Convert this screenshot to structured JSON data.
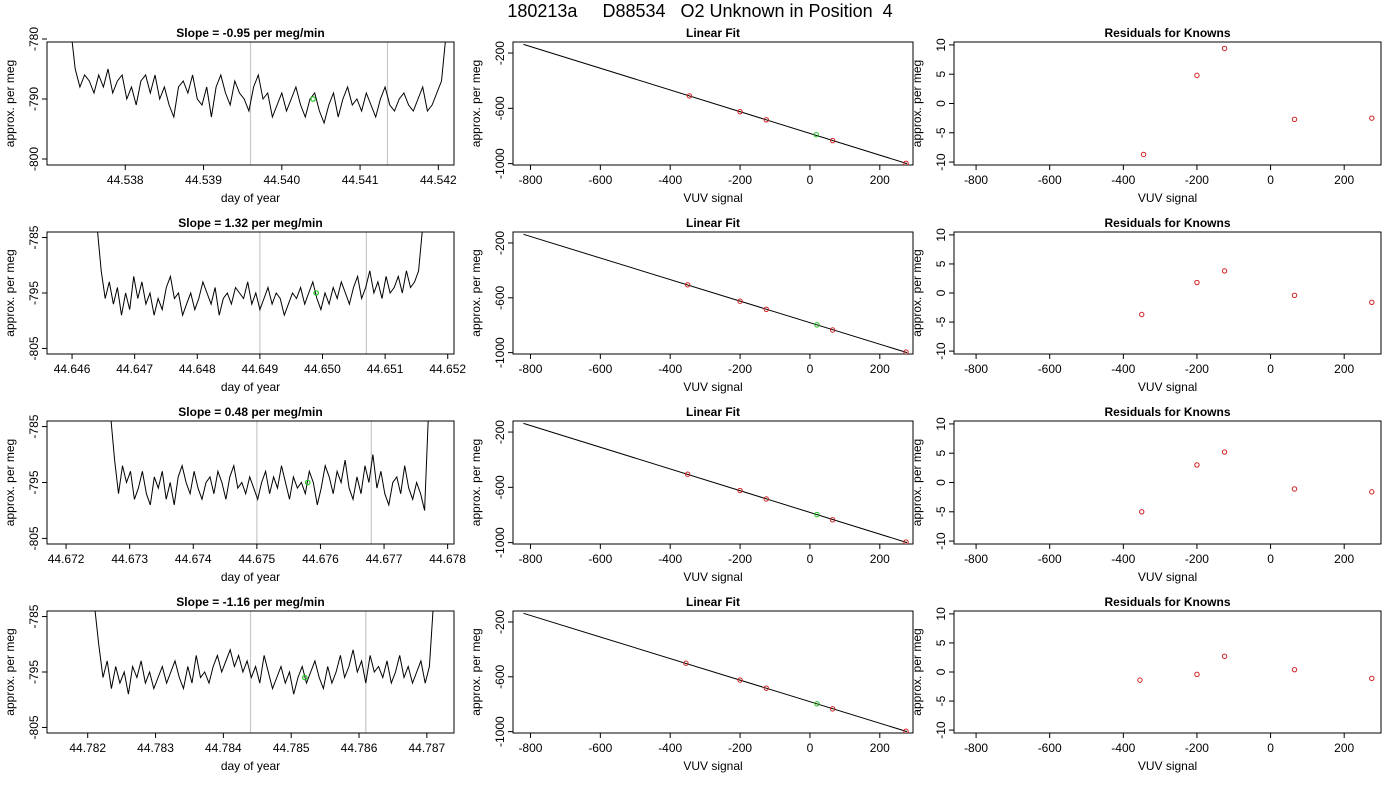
{
  "figure": {
    "title": "180213a     D88534   O2 Unknown in Position  4"
  },
  "chart_data": [
    {
      "type": "line",
      "title": "Slope =  -0.95  per meg/min",
      "xlabel": "day of year",
      "ylabel": "approx. per meg",
      "xlim": [
        44.537,
        44.5422
      ],
      "ylim": [
        -801,
        -780.5
      ],
      "xticks": [
        "44.538",
        "44.539",
        "44.540",
        "44.541",
        "44.542"
      ],
      "yticks": [
        "-780",
        "-790",
        "-800"
      ],
      "vlines": [
        44.5396,
        44.54135
      ],
      "series": [
        {
          "x_start": 44.5373,
          "x_end": 44.5421,
          "y": [
            -778,
            -785,
            -788,
            -786,
            -787,
            -789,
            -786,
            -788,
            -785,
            -789,
            -787,
            -786,
            -790,
            -788,
            -791,
            -787,
            -786,
            -789,
            -786,
            -790,
            -788,
            -791,
            -793,
            -788,
            -787,
            -789,
            -786,
            -790,
            -791,
            -788,
            -793,
            -788,
            -786,
            -789,
            -791,
            -787,
            -789,
            -790,
            -792,
            -788,
            -786,
            -790,
            -789,
            -793,
            -791,
            -789,
            -792,
            -790,
            -788,
            -791,
            -793,
            -790,
            -789,
            -792,
            -794,
            -791,
            -789,
            -793,
            -790,
            -788,
            -791,
            -790,
            -792,
            -789,
            -791,
            -793,
            -790,
            -788,
            -791,
            -792,
            -790,
            -789,
            -791,
            -792,
            -790,
            -788,
            -792,
            -791,
            -789,
            -787,
            -779
          ]
        }
      ],
      "highlight": {
        "x": 44.5404,
        "y": -790
      }
    },
    {
      "type": "scatter",
      "title": "Linear Fit",
      "xlabel": "VUV signal",
      "ylabel": "approx. per meg",
      "xlim": [
        -850,
        295
      ],
      "ylim": [
        -1010,
        -120
      ],
      "xticks": [
        "-800",
        "-600",
        "-400",
        "-200",
        "0",
        "200"
      ],
      "yticks": [
        "-200",
        "-600",
        "-1000"
      ],
      "fit_line": {
        "x1": -820,
        "y1": -137,
        "x2": 278,
        "y2": -1000
      },
      "knowns": [
        {
          "x": -345,
          "y": -510
        },
        {
          "x": -200,
          "y": -624
        },
        {
          "x": -125,
          "y": -683
        },
        {
          "x": 65,
          "y": -833
        },
        {
          "x": 275,
          "y": -998
        }
      ],
      "unknown": {
        "x": 18,
        "y": -791
      }
    },
    {
      "type": "scatter",
      "title": "Residuals for Knowns",
      "xlabel": "VUV signal",
      "ylabel": "approx. per meg",
      "xlim": [
        -860,
        300
      ],
      "ylim": [
        -10.5,
        10.5
      ],
      "xticks": [
        "-800",
        "-600",
        "-400",
        "-200",
        "0",
        "200"
      ],
      "yticks": [
        "10",
        "5",
        "0",
        "-5",
        "-10"
      ],
      "points": [
        {
          "x": -345,
          "y": -8.7
        },
        {
          "x": -200,
          "y": 4.8
        },
        {
          "x": -125,
          "y": 9.4
        },
        {
          "x": 65,
          "y": -2.7
        },
        {
          "x": 275,
          "y": -2.5
        }
      ]
    },
    {
      "type": "line",
      "title": "Slope =  1.32  per meg/min",
      "xlabel": "day of year",
      "ylabel": "approx. per meg",
      "xlim": [
        44.6456,
        44.6521
      ],
      "ylim": [
        -806,
        -784
      ],
      "xticks": [
        "44.646",
        "44.647",
        "44.648",
        "44.649",
        "44.650",
        "44.651",
        "44.652"
      ],
      "yticks": [
        "-785",
        "-795",
        "-805"
      ],
      "vlines": [
        44.649,
        44.6507
      ],
      "series": [
        {
          "x_start": 44.6464,
          "x_end": 44.6516,
          "y": [
            -783,
            -791,
            -796,
            -793,
            -797,
            -794,
            -799,
            -795,
            -798,
            -792,
            -796,
            -793,
            -797,
            -795,
            -799,
            -796,
            -798,
            -794,
            -792,
            -796,
            -795,
            -799,
            -797,
            -795,
            -798,
            -796,
            -793,
            -795,
            -797,
            -794,
            -799,
            -796,
            -795,
            -797,
            -794,
            -795,
            -796,
            -793,
            -797,
            -795,
            -798,
            -796,
            -794,
            -797,
            -795,
            -796,
            -799,
            -797,
            -795,
            -796,
            -794,
            -797,
            -795,
            -793,
            -796,
            -798,
            -795,
            -797,
            -794,
            -796,
            -793,
            -795,
            -797,
            -794,
            -792,
            -796,
            -794,
            -791,
            -795,
            -793,
            -796,
            -792,
            -795,
            -794,
            -792,
            -795,
            -791,
            -794,
            -793,
            -791,
            -783
          ]
        }
      ],
      "highlight": {
        "x": 44.6499,
        "y": -795
      }
    },
    {
      "type": "scatter",
      "title": "Linear Fit",
      "xlabel": "VUV signal",
      "ylabel": "approx. per meg",
      "xlim": [
        -850,
        295
      ],
      "ylim": [
        -1010,
        -120
      ],
      "xticks": [
        "-800",
        "-600",
        "-400",
        "-200",
        "0",
        "200"
      ],
      "yticks": [
        "-200",
        "-600",
        "-1000"
      ],
      "fit_line": {
        "x1": -820,
        "y1": -137,
        "x2": 278,
        "y2": -1000
      },
      "knowns": [
        {
          "x": -350,
          "y": -505
        },
        {
          "x": -200,
          "y": -625
        },
        {
          "x": -125,
          "y": -684
        },
        {
          "x": 65,
          "y": -835
        },
        {
          "x": 275,
          "y": -996
        }
      ],
      "unknown": {
        "x": 20,
        "y": -797
      }
    },
    {
      "type": "scatter",
      "title": "Residuals for Knowns",
      "xlabel": "VUV signal",
      "ylabel": "approx. per meg",
      "xlim": [
        -860,
        300
      ],
      "ylim": [
        -10.5,
        10.5
      ],
      "xticks": [
        "-800",
        "-600",
        "-400",
        "-200",
        "0",
        "200"
      ],
      "yticks": [
        "10",
        "5",
        "0",
        "-5",
        "-10"
      ],
      "points": [
        {
          "x": -350,
          "y": -3.7
        },
        {
          "x": -200,
          "y": 1.8
        },
        {
          "x": -125,
          "y": 3.8
        },
        {
          "x": 65,
          "y": -0.4
        },
        {
          "x": 275,
          "y": -1.6
        }
      ]
    },
    {
      "type": "line",
      "title": "Slope =  0.48  per meg/min",
      "xlabel": "day of year",
      "ylabel": "approx. per meg",
      "xlim": [
        44.6717,
        44.6781
      ],
      "ylim": [
        -806,
        -784
      ],
      "xticks": [
        "44.672",
        "44.673",
        "44.674",
        "44.675",
        "44.676",
        "44.677",
        "44.678"
      ],
      "yticks": [
        "-785",
        "-795",
        "-805"
      ],
      "vlines": [
        44.675,
        44.6768
      ],
      "series": [
        {
          "x_start": 44.6727,
          "x_end": 44.6777,
          "y": [
            -783,
            -791,
            -797,
            -792,
            -795,
            -793,
            -798,
            -796,
            -793,
            -797,
            -799,
            -794,
            -796,
            -793,
            -798,
            -795,
            -799,
            -794,
            -792,
            -795,
            -797,
            -793,
            -796,
            -798,
            -795,
            -794,
            -797,
            -793,
            -795,
            -798,
            -794,
            -792,
            -796,
            -795,
            -797,
            -794,
            -796,
            -798,
            -795,
            -793,
            -797,
            -794,
            -796,
            -792,
            -795,
            -798,
            -794,
            -796,
            -795,
            -797,
            -793,
            -795,
            -799,
            -796,
            -792,
            -794,
            -797,
            -793,
            -795,
            -791,
            -796,
            -798,
            -794,
            -797,
            -792,
            -795,
            -790,
            -796,
            -793,
            -797,
            -799,
            -795,
            -794,
            -797,
            -792,
            -796,
            -798,
            -795,
            -797,
            -800,
            -782
          ]
        }
      ],
      "highlight": {
        "x": 44.6758,
        "y": -795
      }
    },
    {
      "type": "scatter",
      "title": "Linear Fit",
      "xlabel": "VUV signal",
      "ylabel": "approx. per meg",
      "xlim": [
        -850,
        295
      ],
      "ylim": [
        -1010,
        -120
      ],
      "xticks": [
        "-800",
        "-600",
        "-400",
        "-200",
        "0",
        "200"
      ],
      "yticks": [
        "-200",
        "-600",
        "-1000"
      ],
      "fit_line": {
        "x1": -820,
        "y1": -137,
        "x2": 278,
        "y2": -1000
      },
      "knowns": [
        {
          "x": -350,
          "y": -505
        },
        {
          "x": -200,
          "y": -623
        },
        {
          "x": -125,
          "y": -684
        },
        {
          "x": 65,
          "y": -835
        },
        {
          "x": 275,
          "y": -996
        }
      ],
      "unknown": {
        "x": 20,
        "y": -797
      }
    },
    {
      "type": "scatter",
      "title": "Residuals for Knowns",
      "xlabel": "VUV signal",
      "ylabel": "approx. per meg",
      "xlim": [
        -860,
        300
      ],
      "ylim": [
        -10.5,
        10.5
      ],
      "xticks": [
        "-800",
        "-600",
        "-400",
        "-200",
        "0",
        "200"
      ],
      "yticks": [
        "10",
        "5",
        "0",
        "-5",
        "-10"
      ],
      "points": [
        {
          "x": -350,
          "y": -5.0
        },
        {
          "x": -200,
          "y": 3.0
        },
        {
          "x": -125,
          "y": 5.2
        },
        {
          "x": 65,
          "y": -1.1
        },
        {
          "x": 275,
          "y": -1.6
        }
      ]
    },
    {
      "type": "line",
      "title": "Slope =  -1.16  per meg/min",
      "xlabel": "day of year",
      "ylabel": "approx. per meg",
      "xlim": [
        44.7814,
        44.7874
      ],
      "ylim": [
        -806,
        -784
      ],
      "xticks": [
        "44.782",
        "44.783",
        "44.784",
        "44.785",
        "44.786",
        "44.787"
      ],
      "yticks": [
        "-785",
        "-795",
        "-805"
      ],
      "vlines": [
        44.7844,
        44.7861
      ],
      "series": [
        {
          "x_start": 44.7821,
          "x_end": 44.7871,
          "y": [
            -783,
            -790,
            -796,
            -793,
            -798,
            -794,
            -797,
            -795,
            -799,
            -794,
            -796,
            -793,
            -797,
            -795,
            -798,
            -796,
            -794,
            -797,
            -795,
            -793,
            -796,
            -798,
            -794,
            -797,
            -792,
            -796,
            -795,
            -797,
            -794,
            -792,
            -795,
            -793,
            -791,
            -794,
            -792,
            -795,
            -793,
            -796,
            -794,
            -797,
            -792,
            -795,
            -798,
            -796,
            -794,
            -797,
            -795,
            -799,
            -796,
            -794,
            -797,
            -795,
            -793,
            -796,
            -798,
            -794,
            -797,
            -795,
            -792,
            -796,
            -794,
            -791,
            -795,
            -793,
            -797,
            -792,
            -795,
            -794,
            -796,
            -793,
            -797,
            -795,
            -792,
            -796,
            -794,
            -797,
            -795,
            -793,
            -797,
            -794,
            -782
          ]
        }
      ],
      "highlight": {
        "x": 44.7852,
        "y": -796
      }
    },
    {
      "type": "scatter",
      "title": "Linear Fit",
      "xlabel": "VUV signal",
      "ylabel": "approx. per meg",
      "xlim": [
        -850,
        295
      ],
      "ylim": [
        -1010,
        -120
      ],
      "xticks": [
        "-800",
        "-600",
        "-400",
        "-200",
        "0",
        "200"
      ],
      "yticks": [
        "-200",
        "-600",
        "-1000"
      ],
      "fit_line": {
        "x1": -820,
        "y1": -137,
        "x2": 278,
        "y2": -1000
      },
      "knowns": [
        {
          "x": -355,
          "y": -501
        },
        {
          "x": -200,
          "y": -624
        },
        {
          "x": -125,
          "y": -683
        },
        {
          "x": 65,
          "y": -834
        },
        {
          "x": 275,
          "y": -997
        }
      ],
      "unknown": {
        "x": 20,
        "y": -797
      }
    },
    {
      "type": "scatter",
      "title": "Residuals for Knowns",
      "xlabel": "VUV signal",
      "ylabel": "approx. per meg",
      "xlim": [
        -860,
        300
      ],
      "ylim": [
        -10.5,
        10.5
      ],
      "xticks": [
        "-800",
        "-600",
        "-400",
        "-200",
        "0",
        "200"
      ],
      "yticks": [
        "10",
        "5",
        "0",
        "-5",
        "-10"
      ],
      "points": [
        {
          "x": -355,
          "y": -1.4
        },
        {
          "x": -200,
          "y": -0.4
        },
        {
          "x": -125,
          "y": 2.7
        },
        {
          "x": 65,
          "y": 0.4
        },
        {
          "x": 275,
          "y": -1.1
        }
      ]
    }
  ]
}
